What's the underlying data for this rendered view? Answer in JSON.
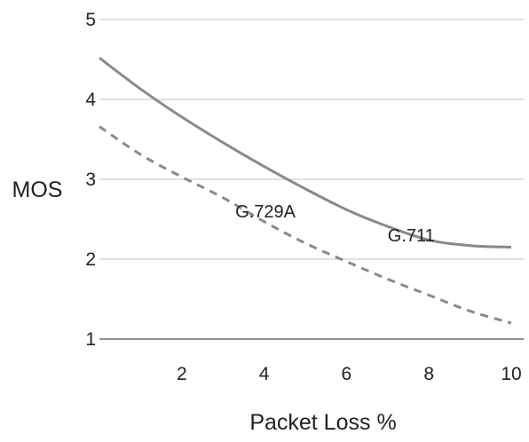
{
  "chart_data": {
    "type": "line",
    "xlabel": "Packet Loss %",
    "ylabel": "MOS",
    "xlim": [
      0,
      10
    ],
    "ylim": [
      1,
      5
    ],
    "xticks": [
      "2",
      "4",
      "6",
      "8",
      "10"
    ],
    "yticks": [
      "1",
      "2",
      "3",
      "4",
      "5"
    ],
    "grid": "horizontal",
    "legend": "inline labels",
    "series": [
      {
        "name": "G.711",
        "style": "solid",
        "color": "#8a8a8a",
        "x": [
          0,
          1,
          2,
          3,
          4,
          5,
          6,
          7,
          8,
          9,
          10
        ],
        "y": [
          4.52,
          4.13,
          3.78,
          3.46,
          3.16,
          2.88,
          2.62,
          2.41,
          2.24,
          2.17,
          2.15
        ]
      },
      {
        "name": "G.729A",
        "style": "dashed",
        "color": "#8a8a8a",
        "x": [
          0,
          1,
          2,
          3,
          4,
          5,
          6,
          7,
          8,
          9,
          10
        ],
        "y": [
          3.66,
          3.31,
          3.03,
          2.77,
          2.47,
          2.2,
          1.97,
          1.75,
          1.55,
          1.35,
          1.2
        ]
      }
    ]
  }
}
